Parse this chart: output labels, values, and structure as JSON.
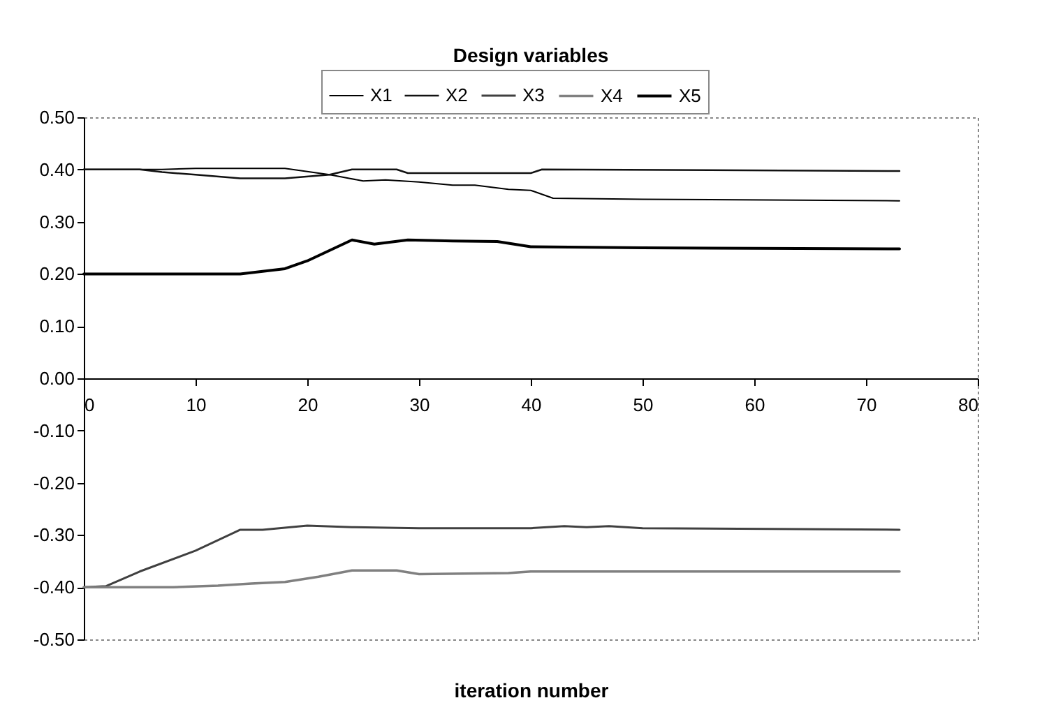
{
  "chart_data": {
    "type": "line",
    "title": "Design variables",
    "xlabel": "iteration number",
    "xlim": [
      0,
      80
    ],
    "xticks": [
      0,
      10,
      20,
      30,
      40,
      50,
      60,
      70,
      80
    ],
    "ylim": [
      -0.5,
      0.5
    ],
    "yticks": [
      {
        "value": -0.5,
        "label": "-0.50"
      },
      {
        "value": -0.4,
        "label": "-0.40"
      },
      {
        "value": -0.3,
        "label": "-0.30"
      },
      {
        "value": -0.2,
        "label": "-0.20"
      },
      {
        "value": -0.1,
        "label": "-0.10"
      },
      {
        "value": 0,
        "label": "0.00"
      },
      {
        "value": 0.1,
        "label": "0.10"
      },
      {
        "value": 0.2,
        "label": "0.20"
      },
      {
        "value": 0.3,
        "label": "0.30"
      },
      {
        "value": 0.4,
        "label": "0.40"
      },
      {
        "value": 0.5,
        "label": "0.50"
      }
    ],
    "grid": false,
    "legend": "top",
    "marker": "none",
    "line_style": "solid",
    "series": [
      {
        "name": "X1",
        "color": "#000000",
        "x": [
          0,
          7,
          10,
          18,
          22,
          25,
          27,
          30,
          33,
          35,
          38,
          40,
          42,
          50,
          73
        ],
        "values": [
          0.4,
          0.4,
          0.402,
          0.402,
          0.39,
          0.378,
          0.38,
          0.376,
          0.37,
          0.37,
          0.362,
          0.36,
          0.345,
          0.343,
          0.34
        ]
      },
      {
        "name": "X2",
        "color": "#111111",
        "x": [
          0,
          5,
          7,
          10,
          14,
          18,
          22,
          24,
          28,
          29,
          38,
          40,
          41,
          73
        ],
        "values": [
          0.4,
          0.4,
          0.395,
          0.39,
          0.383,
          0.383,
          0.39,
          0.4,
          0.4,
          0.393,
          0.393,
          0.393,
          0.4,
          0.397
        ]
      },
      {
        "name": "X3",
        "color": "#404040",
        "x": [
          0,
          2,
          5,
          10,
          14,
          16,
          20,
          24,
          30,
          40,
          43,
          45,
          47,
          50,
          73
        ],
        "values": [
          -0.4,
          -0.398,
          -0.37,
          -0.33,
          -0.29,
          -0.29,
          -0.282,
          -0.285,
          -0.287,
          -0.287,
          -0.283,
          -0.285,
          -0.283,
          -0.287,
          -0.29
        ]
      },
      {
        "name": "X4",
        "color": "#808080",
        "x": [
          0,
          8,
          12,
          15,
          18,
          21,
          24,
          28,
          30,
          38,
          40,
          73
        ],
        "values": [
          -0.4,
          -0.4,
          -0.397,
          -0.393,
          -0.39,
          -0.38,
          -0.368,
          -0.368,
          -0.375,
          -0.373,
          -0.37,
          -0.37
        ]
      },
      {
        "name": "X5",
        "color": "#000000",
        "x": [
          0,
          14,
          16,
          18,
          20,
          22,
          24,
          26,
          29,
          33,
          37,
          40,
          50,
          73
        ],
        "values": [
          0.2,
          0.2,
          0.205,
          0.21,
          0.225,
          0.245,
          0.265,
          0.257,
          0.265,
          0.263,
          0.262,
          0.252,
          0.25,
          0.248
        ]
      }
    ]
  }
}
